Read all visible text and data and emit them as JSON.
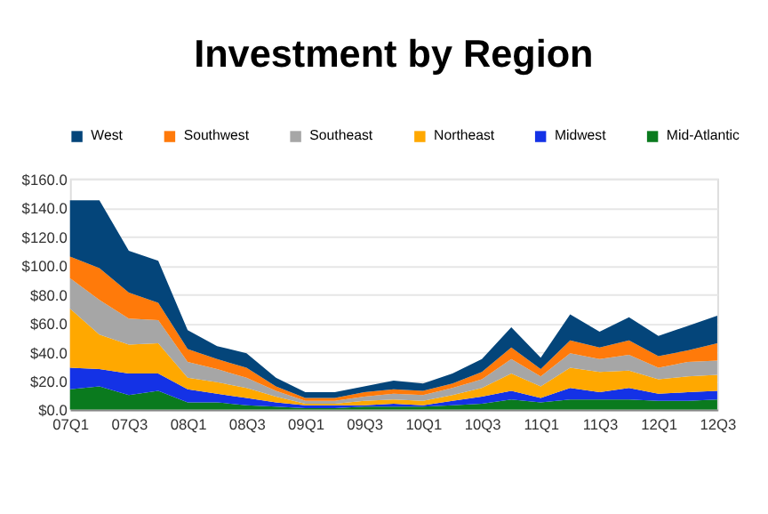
{
  "chart_data": {
    "type": "area",
    "title": "Investment by Region",
    "stacked": true,
    "categories": [
      "07Q1",
      null,
      "07Q3",
      null,
      "08Q1",
      null,
      "08Q3",
      null,
      "09Q1",
      null,
      "09Q3",
      null,
      "10Q1",
      null,
      "10Q3",
      null,
      "11Q1",
      null,
      "11Q3",
      null,
      "12Q1",
      null,
      "12Q3"
    ],
    "series": [
      {
        "name": "Mid-Atlantic",
        "color": "#0a7a1e",
        "values": [
          14,
          16,
          10,
          13,
          5,
          5,
          3,
          2,
          1,
          1,
          2,
          2,
          2,
          3,
          4,
          7,
          5,
          7,
          7,
          7,
          6,
          6,
          7
        ]
      },
      {
        "name": "Midwest",
        "color": "#1432e6",
        "values": [
          15,
          12,
          15,
          12,
          9,
          6,
          5,
          3,
          2,
          2,
          1,
          2,
          1,
          3,
          5,
          6,
          3,
          8,
          5,
          8,
          5,
          6,
          6
        ]
      },
      {
        "name": "Northeast",
        "color": "#ffa800",
        "values": [
          41,
          24,
          20,
          21,
          8,
          8,
          7,
          4,
          1,
          1,
          3,
          3,
          3,
          4,
          6,
          12,
          8,
          14,
          14,
          12,
          10,
          11,
          11
        ]
      },
      {
        "name": "Southeast",
        "color": "#a6a6a6",
        "values": [
          21,
          24,
          18,
          16,
          11,
          9,
          7,
          4,
          2,
          2,
          3,
          4,
          4,
          5,
          6,
          10,
          7,
          10,
          9,
          11,
          8,
          10,
          10
        ]
      },
      {
        "name": "Southwest",
        "color": "#ff7a0a",
        "values": [
          15,
          22,
          18,
          12,
          9,
          7,
          7,
          3,
          2,
          2,
          3,
          3,
          3,
          3,
          5,
          8,
          5,
          9,
          8,
          10,
          8,
          8,
          12
        ]
      },
      {
        "name": "West",
        "color": "#04457a",
        "values": [
          39,
          47,
          29,
          29,
          13,
          9,
          10,
          6,
          4,
          4,
          4,
          6,
          5,
          7,
          9,
          14,
          8,
          18,
          11,
          16,
          14,
          17,
          19
        ]
      }
    ],
    "ylim": [
      0,
      160
    ],
    "yticks": [
      {
        "value": 0,
        "label": "$0.0"
      },
      {
        "value": 20,
        "label": "$20.0"
      },
      {
        "value": 40,
        "label": "$40.0"
      },
      {
        "value": 60,
        "label": "$60.0"
      },
      {
        "value": 80,
        "label": "$80.0"
      },
      {
        "value": 100,
        "label": "$100.0"
      },
      {
        "value": 120,
        "label": "$120.0"
      },
      {
        "value": 140,
        "label": "$140.0"
      },
      {
        "value": 160,
        "label": "$160.0"
      }
    ],
    "grid": "y",
    "legend": "top"
  }
}
